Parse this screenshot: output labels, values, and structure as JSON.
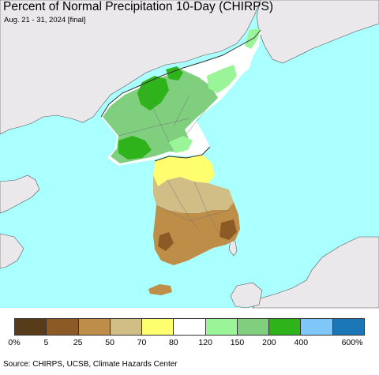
{
  "title": "Percent of Normal Precipitation 10-Day (CHIRPS)",
  "subtitle": "Aug. 21 - 31, 2024 [final]",
  "source": "Source: CHIRPS, UCSB, Climate Hazards Center",
  "map": {
    "ocean_color": "#aaffff",
    "land_outside_color": "#ebe8ec",
    "regions": [
      {
        "name": "north-korea-northeast",
        "category": "80-120",
        "color": "#ffffff"
      },
      {
        "name": "north-korea-central",
        "category": "150-200",
        "color": "#7fcf7f"
      },
      {
        "name": "north-korea-wet-core",
        "category": "200-400",
        "color": "#2eb31a"
      },
      {
        "name": "south-korea-north",
        "category": "70-80",
        "color": "#fffe6e"
      },
      {
        "name": "south-korea-central",
        "category": "50-70",
        "color": "#d1bd86"
      },
      {
        "name": "south-korea-south",
        "category": "25-50",
        "color": "#be8d48"
      }
    ]
  },
  "legend": {
    "colors": [
      "#583c19",
      "#8c5a24",
      "#be8d48",
      "#d1bd86",
      "#fffe6e",
      "#ffffff",
      "#99f597",
      "#7fcf7f",
      "#2eb31a",
      "#7ec7f8",
      "#1c77b6"
    ],
    "labels": [
      "0%",
      "5",
      "25",
      "50",
      "70",
      "80",
      "120",
      "150",
      "200",
      "400",
      "600%"
    ]
  }
}
